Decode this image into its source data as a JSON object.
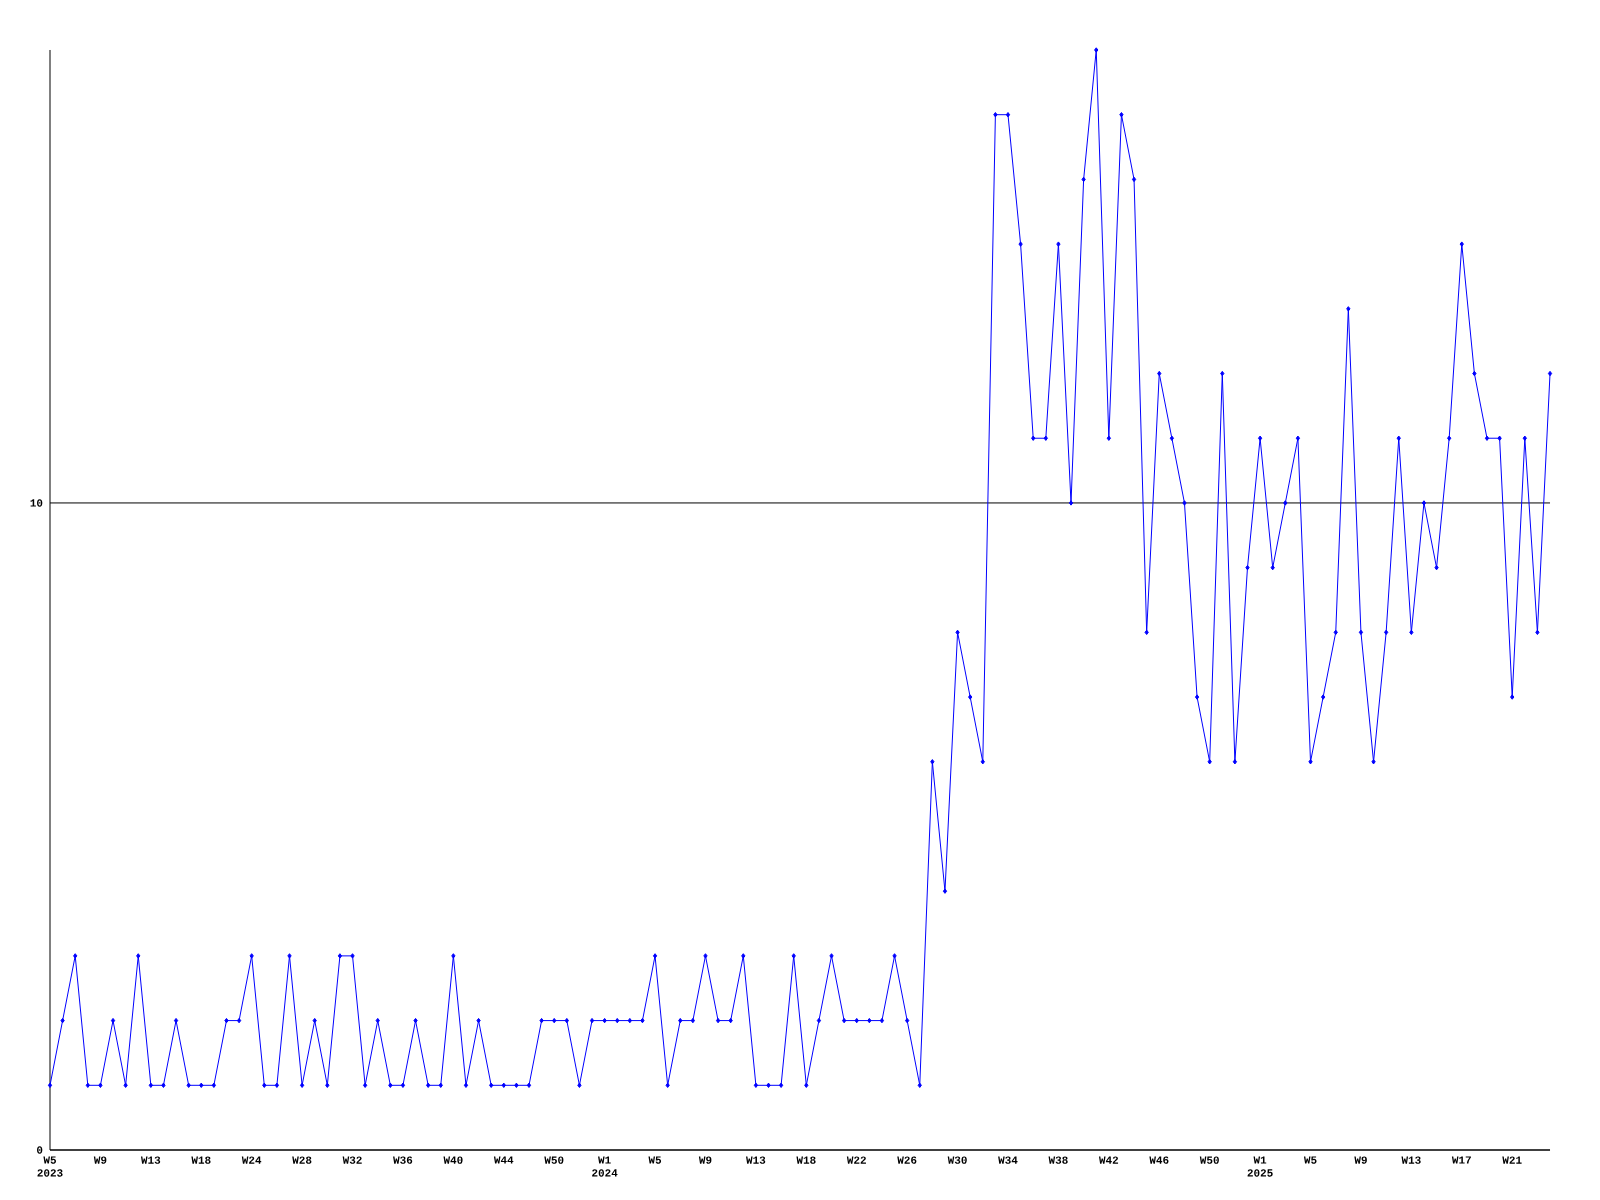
{
  "chart_data": {
    "type": "line",
    "categories": [
      "W5 2023",
      null,
      null,
      null,
      "W9",
      null,
      null,
      null,
      "W13",
      null,
      null,
      null,
      "W18",
      null,
      null,
      null,
      "W24",
      null,
      null,
      null,
      "W28",
      null,
      null,
      null,
      "W32",
      null,
      null,
      null,
      "W36",
      null,
      null,
      null,
      "W40",
      null,
      null,
      null,
      "W44",
      null,
      null,
      null,
      "W50",
      null,
      null,
      null,
      "W1 2024",
      null,
      null,
      null,
      "W5",
      null,
      null,
      null,
      "W9",
      null,
      null,
      null,
      "W13",
      null,
      null,
      null,
      "W18",
      null,
      null,
      null,
      "W22",
      null,
      null,
      null,
      "W26",
      null,
      null,
      null,
      "W30",
      null,
      null,
      null,
      "W34",
      null,
      null,
      null,
      "W38",
      null,
      null,
      null,
      "W42",
      null,
      null,
      null,
      "W46",
      null,
      null,
      null,
      "W50",
      null,
      null,
      null,
      "W1 2025",
      null,
      null,
      null,
      "W5",
      null,
      null,
      null,
      "W9",
      null,
      null,
      null,
      "W13",
      null,
      null,
      null,
      "W17",
      null,
      null,
      null,
      "W21",
      null,
      null,
      null
    ],
    "series": [
      {
        "color": "#0000ff",
        "values": [
          1,
          2,
          3,
          1,
          1,
          2,
          1,
          3,
          1,
          1,
          2,
          1,
          1,
          1,
          2,
          2,
          3,
          1,
          1,
          3,
          1,
          2,
          1,
          3,
          3,
          1,
          2,
          1,
          1,
          2,
          1,
          1,
          3,
          1,
          2,
          1,
          1,
          1,
          1,
          2,
          2,
          2,
          1,
          2,
          2,
          2,
          2,
          2,
          3,
          1,
          2,
          2,
          3,
          2,
          2,
          3,
          1,
          1,
          1,
          3,
          1,
          2,
          3,
          2,
          2,
          2,
          2,
          3,
          2,
          1,
          6,
          4,
          8,
          7,
          6,
          16,
          16,
          14,
          11,
          11,
          14,
          10,
          15,
          17,
          11,
          16,
          15,
          8,
          12,
          11,
          10,
          7,
          6,
          12,
          6,
          9,
          11,
          9,
          10,
          11,
          6,
          7,
          8,
          13,
          8,
          6,
          8,
          11,
          8,
          10,
          9,
          11,
          14,
          12,
          11,
          11,
          7,
          11,
          8,
          12
        ]
      }
    ],
    "ylim": [
      0,
      17
    ],
    "yticks": [
      0,
      10
    ],
    "grid": "y",
    "marker": "diamond",
    "line_style": "solid"
  }
}
